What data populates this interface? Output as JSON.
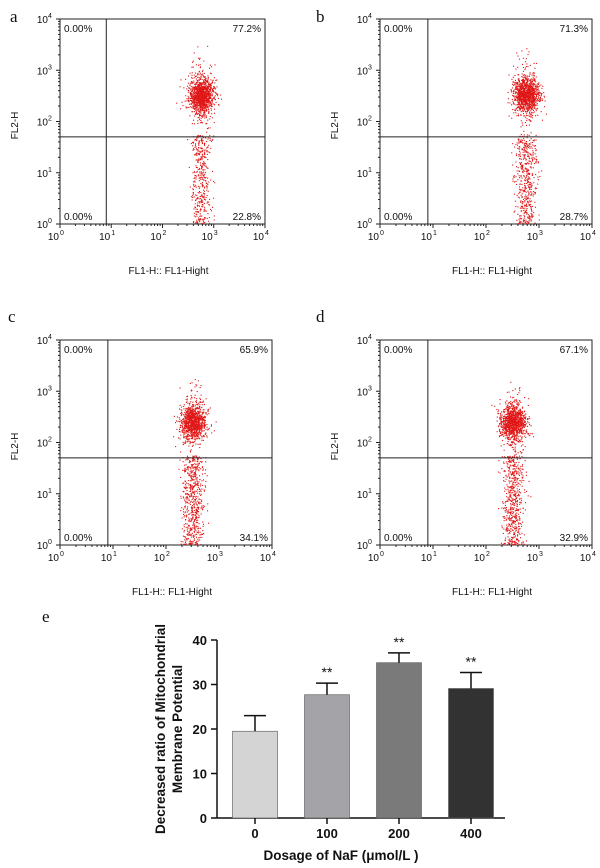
{
  "chart_data": [
    {
      "id": "a",
      "type": "scatter",
      "panel_label": "a",
      "xlabel": "FL1-H:: FL1-Hight",
      "ylabel": "FL2-H",
      "scale": "log",
      "xlim": [
        1,
        10000
      ],
      "ylim": [
        1,
        10000
      ],
      "tick_bases": [
        "10",
        "10",
        "10",
        "10",
        "10"
      ],
      "tick_exponents": [
        "0",
        "1",
        "2",
        "3",
        "4"
      ],
      "gate": {
        "x": 8,
        "y": 50
      },
      "quadrant_labels": {
        "upper_left": "0.00%",
        "upper_right": "77.2%",
        "lower_left": "0.00%",
        "lower_right": "22.8%"
      },
      "upper_fraction": 0.772,
      "population": {
        "hi_center": [
          560,
          320
        ],
        "lo_center": [
          560,
          8
        ],
        "events": 1700
      }
    },
    {
      "id": "b",
      "type": "scatter",
      "panel_label": "b",
      "xlabel": "FL1-H:: FL1-Hight",
      "ylabel": "FL2-H",
      "scale": "log",
      "xlim": [
        1,
        10000
      ],
      "ylim": [
        1,
        10000
      ],
      "tick_bases": [
        "10",
        "10",
        "10",
        "10",
        "10"
      ],
      "tick_exponents": [
        "0",
        "1",
        "2",
        "3",
        "4"
      ],
      "gate": {
        "x": 8,
        "y": 50
      },
      "quadrant_labels": {
        "upper_left": "0.00%",
        "upper_right": "71.3%",
        "lower_left": "0.00%",
        "lower_right": "28.7%"
      },
      "upper_fraction": 0.713,
      "population": {
        "hi_center": [
          560,
          330
        ],
        "lo_center": [
          560,
          8
        ],
        "events": 1700
      }
    },
    {
      "id": "c",
      "type": "scatter",
      "panel_label": "c",
      "xlabel": "FL1-H:: FL1-Hight",
      "ylabel": "FL2-H",
      "scale": "log",
      "xlim": [
        1,
        10000
      ],
      "ylim": [
        1,
        10000
      ],
      "tick_bases": [
        "10",
        "10",
        "10",
        "10",
        "10"
      ],
      "tick_exponents": [
        "0",
        "1",
        "2",
        "3",
        "4"
      ],
      "gate": {
        "x": 8,
        "y": 50
      },
      "quadrant_labels": {
        "upper_left": "0.00%",
        "upper_right": "65.9%",
        "lower_left": "0.00%",
        "lower_right": "34.1%"
      },
      "upper_fraction": 0.659,
      "population": {
        "hi_center": [
          320,
          250
        ],
        "lo_center": [
          320,
          8
        ],
        "events": 1700
      }
    },
    {
      "id": "d",
      "type": "scatter",
      "panel_label": "d",
      "xlabel": "FL1-H:: FL1-Hight",
      "ylabel": "FL2-H",
      "scale": "log",
      "xlim": [
        1,
        10000
      ],
      "ylim": [
        1,
        10000
      ],
      "tick_bases": [
        "10",
        "10",
        "10",
        "10",
        "10"
      ],
      "tick_exponents": [
        "0",
        "1",
        "2",
        "3",
        "4"
      ],
      "gate": {
        "x": 8,
        "y": 50
      },
      "quadrant_labels": {
        "upper_left": "0.00%",
        "upper_right": "67.1%",
        "lower_left": "0.00%",
        "lower_right": "32.9%"
      },
      "upper_fraction": 0.671,
      "population": {
        "hi_center": [
          320,
          250
        ],
        "lo_center": [
          320,
          8
        ],
        "events": 1700
      }
    },
    {
      "id": "e",
      "type": "bar",
      "panel_label": "e",
      "categories": [
        "0",
        "100",
        "200",
        "400"
      ],
      "values": [
        19.5,
        27.7,
        34.9,
        29.1
      ],
      "errors": [
        3.5,
        2.6,
        2.2,
        3.6
      ],
      "significance": [
        "",
        "**",
        "**",
        "**"
      ],
      "bar_colors": [
        "#d4d4d4",
        "#a3a3a8",
        "#7a7a7a",
        "#323232"
      ],
      "xlabel": "Dosage of NaF (μmol/L )",
      "ylabel": [
        "Decreased  ratio of Mitochondrial",
        "Membrane Potential"
      ],
      "ylim": [
        0,
        40
      ],
      "yticks": [
        0,
        10,
        20,
        30,
        40
      ]
    }
  ]
}
